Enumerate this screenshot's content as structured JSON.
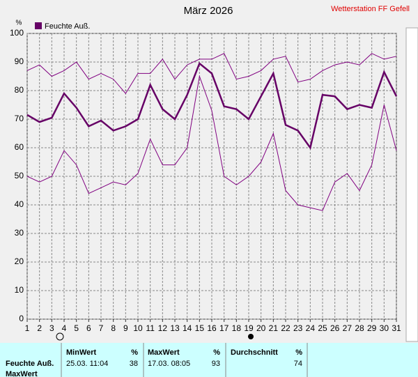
{
  "chart_data": {
    "type": "line",
    "title": "März 2026",
    "station": "Wetterstation FF Gefell",
    "y_unit": "%",
    "categories": [
      "1",
      "2",
      "3",
      "4",
      "5",
      "6",
      "7",
      "8",
      "9",
      "10",
      "11",
      "12",
      "13",
      "14",
      "15",
      "16",
      "17",
      "18",
      "19",
      "20",
      "21",
      "22",
      "23",
      "24",
      "25",
      "26",
      "27",
      "28",
      "29",
      "30",
      "31"
    ],
    "series": [
      {
        "name": "Feuchte Auß.",
        "color": "#660066",
        "width": 2.5,
        "values": [
          71.5,
          69,
          70.5,
          79,
          74,
          67.5,
          69.5,
          66,
          67.5,
          70,
          82,
          73.5,
          70,
          78.5,
          89.5,
          86,
          74.5,
          73.5,
          70,
          78,
          86,
          68,
          66,
          60,
          78.5,
          78,
          73.5,
          75,
          74,
          86.5,
          78
        ]
      },
      {
        "color": "#800080",
        "width": 1,
        "values": [
          87,
          89,
          85,
          87,
          90,
          84,
          86,
          84,
          79,
          86,
          86,
          91,
          84,
          89,
          91,
          91,
          93,
          84,
          85,
          87,
          91,
          92,
          83,
          84,
          87,
          89,
          90,
          89,
          93,
          91,
          92
        ]
      },
      {
        "color": "#800080",
        "width": 1,
        "values": [
          50,
          48,
          50,
          59,
          54,
          44,
          46,
          48,
          47,
          51,
          63,
          54,
          54,
          60,
          85,
          73,
          50,
          47,
          50,
          55,
          65,
          45,
          40,
          39,
          38,
          48,
          51,
          45,
          54,
          75,
          59
        ]
      }
    ],
    "ylim": [
      0,
      100
    ],
    "yticks": [
      0,
      10,
      20,
      30,
      40,
      50,
      60,
      70,
      80,
      90,
      100
    ],
    "grid": true
  },
  "table": {
    "header": [
      "MinWert",
      "%",
      "MaxWert",
      "%",
      "Durchschnitt",
      "%"
    ],
    "rows": [
      [
        "Feuchte Auß.",
        "25.03.  11:04",
        "38",
        "17.03.  08:05",
        "93",
        "74"
      ],
      [
        "MaxWert"
      ]
    ]
  }
}
